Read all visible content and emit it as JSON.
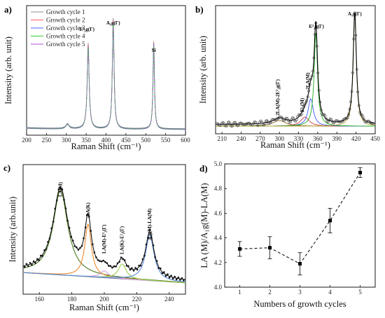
{
  "chart_data": [
    {
      "panel": "a)",
      "type": "line",
      "xlabel": "Raman Shift (cm⁻¹)",
      "ylabel": "Intensity (arb. unit)",
      "xlim": [
        200,
        600
      ],
      "xticks": [
        "200",
        "250",
        "300",
        "350",
        "400",
        "450",
        "500",
        "550",
        "600"
      ],
      "legend_position": "top-left",
      "series": [
        {
          "name": "Growth cycle 1",
          "color": "#8c8c8c"
        },
        {
          "name": "Growth cycle 2",
          "color": "#ff5a5a"
        },
        {
          "name": "Growth cycle 3",
          "color": "#4466ff"
        },
        {
          "name": "Growth cycle 4",
          "color": "#33cc33"
        },
        {
          "name": "Growth cycle 5",
          "color": "#b04fd0"
        }
      ],
      "peaks": [
        {
          "x": 355,
          "height": 0.72,
          "width": 3
        },
        {
          "x": 418,
          "height": 0.94,
          "width": 2.6
        },
        {
          "x": 520,
          "height": 0.74,
          "width": 2.2
        },
        {
          "x": 303,
          "height": 0.04,
          "width": 5
        }
      ],
      "annotations": [
        {
          "text": "E²₂g(Γ)",
          "x": 352
        },
        {
          "text": "A₁g(Γ)",
          "x": 418
        },
        {
          "text": "Si",
          "x": 520
        }
      ]
    },
    {
      "panel": "b)",
      "type": "scatter",
      "xlabel": "Raman Shift (cm⁻¹)",
      "ylabel": "Intensity (arb. unit)",
      "xlim": [
        200,
        450
      ],
      "xticks": [
        "210",
        "240",
        "270",
        "300",
        "330",
        "360",
        "390",
        "420",
        "450"
      ],
      "peaks": [
        {
          "x": 300,
          "height": 0.05,
          "width": 12,
          "color": "#8d6e2c"
        },
        {
          "x": 340,
          "height": 0.08,
          "width": 8,
          "color": "#d43c3c"
        },
        {
          "x": 349,
          "height": 0.24,
          "width": 5,
          "color": "#3a5cff"
        },
        {
          "x": 357,
          "height": 0.82,
          "width": 3.2,
          "color": "#22aa22"
        },
        {
          "x": 418,
          "height": 0.98,
          "width": 3.0,
          "color": "#b8a22e"
        }
      ],
      "annotations": [
        {
          "text": "2LA(M)-2E²₂g(Γ)",
          "x": 300
        },
        {
          "text": "E¹₂(M)",
          "x": 338
        },
        {
          "text": "2LA(M)",
          "x": 347
        },
        {
          "text": "E²₂g(Γ)",
          "x": 358
        },
        {
          "text": "A₁g(Γ)",
          "x": 418
        }
      ]
    },
    {
      "panel": "c)",
      "type": "scatter",
      "xlabel": "Raman Shift (cm⁻¹)",
      "ylabel": "Intensity (arb.unit)",
      "xlim": [
        150,
        250
      ],
      "xticks": [
        "160",
        "180",
        "200",
        "220",
        "240"
      ],
      "peaks": [
        {
          "x": 173,
          "height": 0.74,
          "width": 5.5,
          "color": "#4a7a1c"
        },
        {
          "x": 190,
          "height": 0.46,
          "width": 2.5,
          "color": "#f08a2c"
        },
        {
          "x": 200,
          "height": 0.06,
          "width": 3,
          "color": "#d4a0e0"
        },
        {
          "x": 211,
          "height": 0.13,
          "width": 3,
          "color": "#9ad04a"
        },
        {
          "x": 228,
          "height": 0.4,
          "width": 3.2,
          "color": "#5a8ad8"
        }
      ],
      "annotations": [
        {
          "text": "LA(M)",
          "x": 173
        },
        {
          "text": "LA(K)",
          "x": 190
        },
        {
          "text": "LA(M)-E²₂(Γ)",
          "x": 200
        },
        {
          "text": "LA(K)-E²₂(Γ)",
          "x": 211
        },
        {
          "text": "A₁g(M)-LA(M)",
          "x": 228
        }
      ]
    },
    {
      "panel": "d)",
      "type": "line",
      "xlabel": "Numbers of growth cycles",
      "ylabel": "LA (M)/A₁g(M)-LA(M)",
      "xlim": [
        0.5,
        5.5
      ],
      "ylim": [
        4.0,
        5.0
      ],
      "xticks": [
        "1",
        "2",
        "3",
        "4",
        "5"
      ],
      "yticks": [
        "4.0",
        "4.2",
        "4.4",
        "4.6",
        "4.8",
        "5.0"
      ],
      "x": [
        1,
        2,
        3,
        4,
        5
      ],
      "y": [
        4.31,
        4.32,
        4.19,
        4.54,
        4.93
      ],
      "error": [
        0.06,
        0.09,
        0.09,
        0.1,
        0.04
      ]
    }
  ]
}
